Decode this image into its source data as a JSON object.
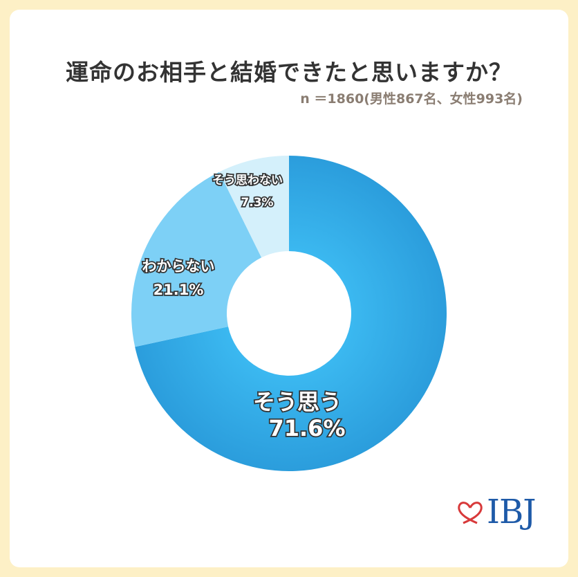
{
  "title": "運命のお相手と結婚できたと思いますか？",
  "subtitle": "n ＝1860(男性867名、女性993名)",
  "chart_data": {
    "type": "pie",
    "donut": true,
    "start": "top, clockwise",
    "slices": [
      {
        "label": "そう思う",
        "value": 71.6,
        "display": "71.6%",
        "color": "#35aeea"
      },
      {
        "label": "わからない",
        "value": 21.1,
        "display": "21.1%",
        "color": "#7dd0f6"
      },
      {
        "label": "そう思わない",
        "value": 7.3,
        "display": "7.3%",
        "color": "#d4f0fb"
      }
    ]
  },
  "logo": {
    "text": "IBJ",
    "heart_color": "#d8393a",
    "text_color": "#1e5aa8"
  }
}
